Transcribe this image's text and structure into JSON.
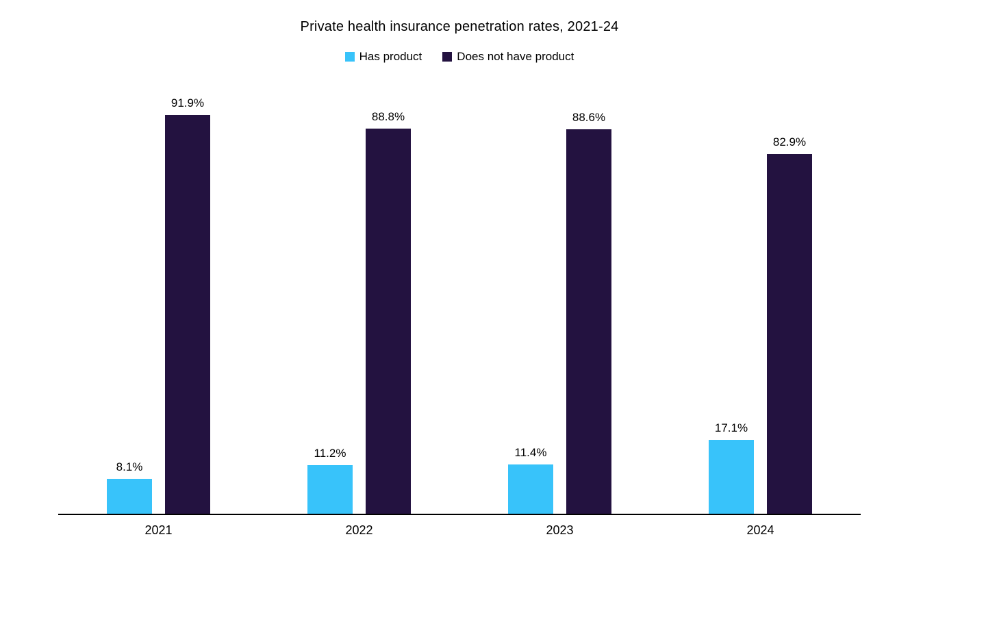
{
  "title": "Private health insurance penetration rates, 2021-24",
  "colors": {
    "has_product": "#38C3FA",
    "does_not_have_product": "#231240",
    "axis": "#000000",
    "text": "#000000",
    "background": "#FFFFFF"
  },
  "legend": {
    "position": "top",
    "items": [
      {
        "label": "Has product",
        "color": "#38C3FA"
      },
      {
        "label": "Does not have product",
        "color": "#231240"
      }
    ]
  },
  "chart_data": {
    "type": "bar",
    "title": "Private health insurance penetration rates, 2021-24",
    "categories": [
      "2021",
      "2022",
      "2023",
      "2024"
    ],
    "series": [
      {
        "name": "Has product",
        "color": "#38C3FA",
        "values": [
          8.1,
          11.2,
          11.4,
          17.1
        ],
        "labels": [
          "8.1%",
          "11.2%",
          "11.4%",
          "17.1%"
        ]
      },
      {
        "name": "Does not have product",
        "color": "#231240",
        "values": [
          91.9,
          88.8,
          88.6,
          82.9
        ],
        "labels": [
          "91.9%",
          "88.8%",
          "88.6%",
          "82.9%"
        ]
      }
    ],
    "xlabel": "",
    "ylabel": "",
    "ylim": [
      0,
      100
    ],
    "grid": false,
    "data_labels": true,
    "legend_position": "top"
  }
}
